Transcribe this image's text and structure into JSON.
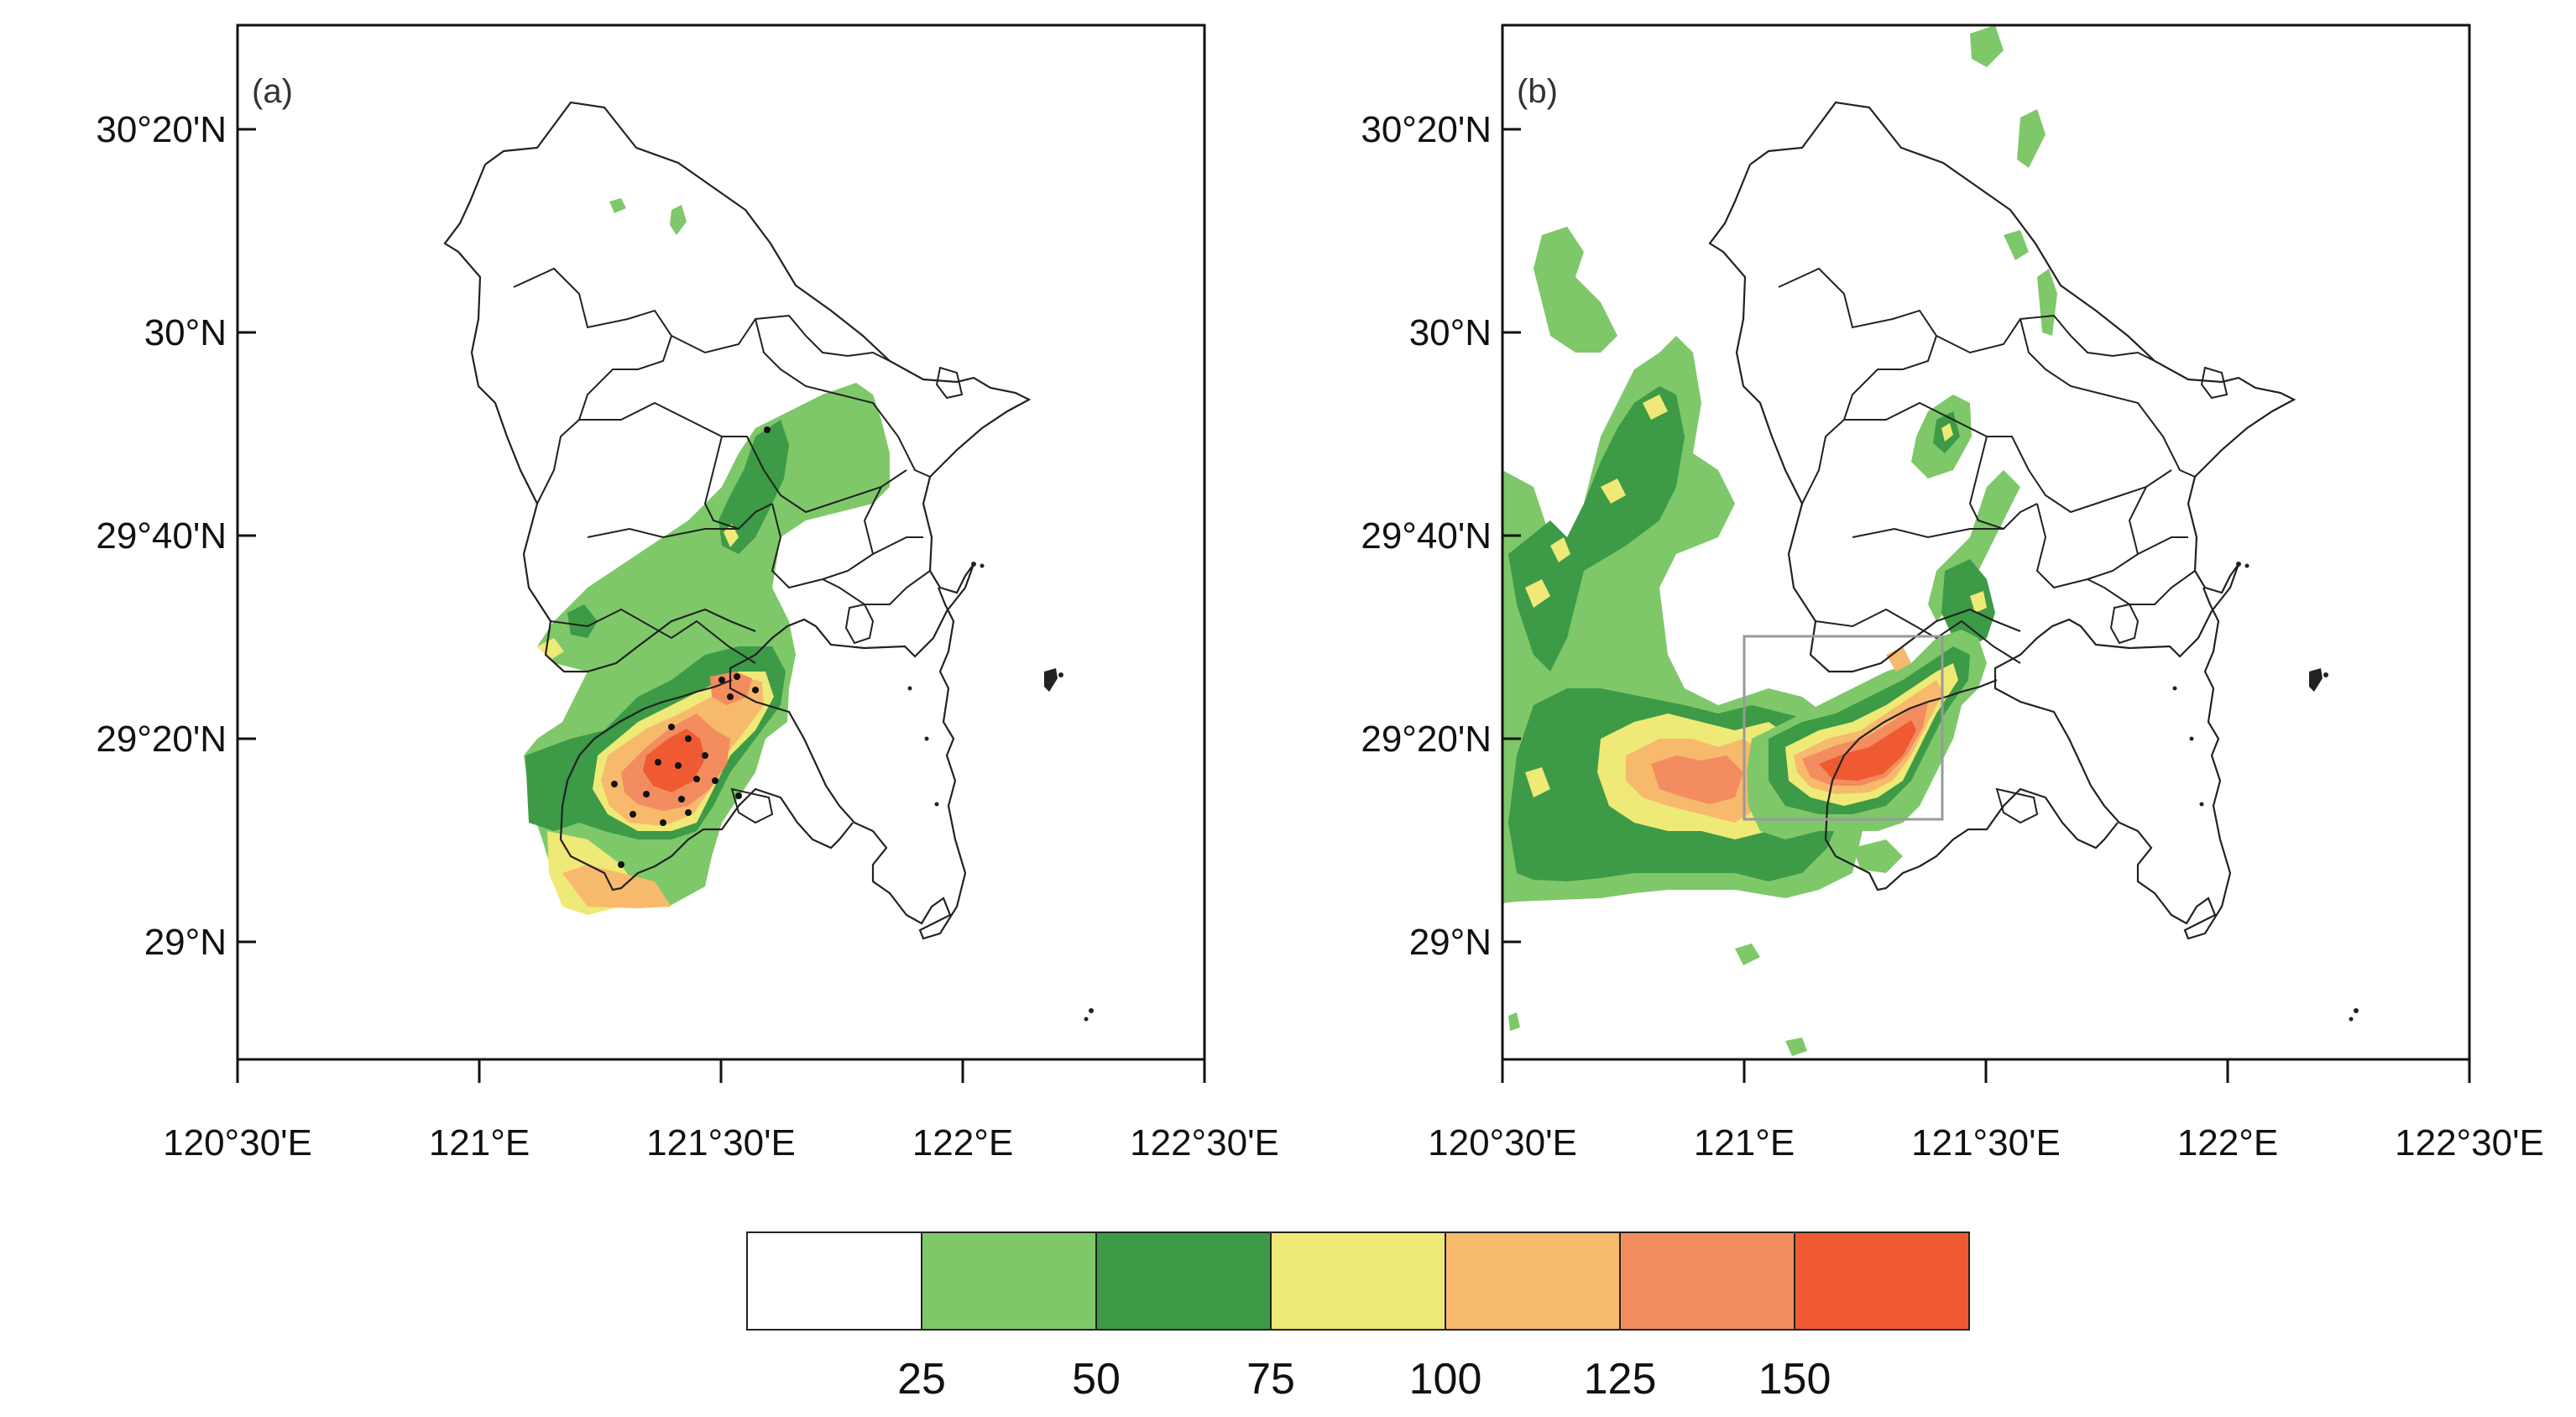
{
  "panels": [
    {
      "id": "a",
      "label": "(a)",
      "y_ticks": [
        "30°20'N",
        "30°N",
        "29°40'N",
        "29°20'N",
        "29°N"
      ],
      "x_ticks": [
        "120°30'E",
        "121°E",
        "121°30'E",
        "122°E",
        "122°30'E"
      ]
    },
    {
      "id": "b",
      "label": "(b)",
      "y_ticks": [
        "30°20'N",
        "30°N",
        "29°40'N",
        "29°20'N",
        "29°N"
      ],
      "x_ticks": [
        "120°30'E",
        "121°E",
        "121°30'E",
        "122°E",
        "122°30'E"
      ]
    }
  ],
  "colorbar": {
    "colors": [
      "#ffffff",
      "#7ec86a",
      "#3d9a47",
      "#efe977",
      "#f7b96c",
      "#f38c5f",
      "#ef5a32"
    ],
    "labels": [
      "25",
      "50",
      "75",
      "100",
      "125",
      "150"
    ]
  }
}
